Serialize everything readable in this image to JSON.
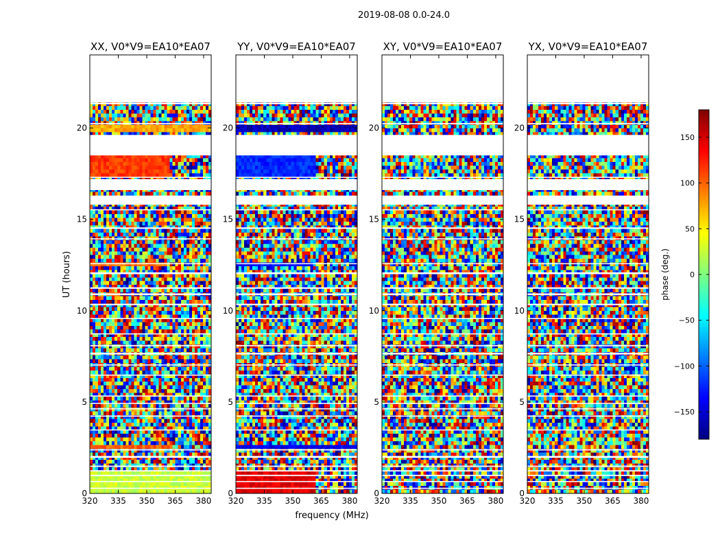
{
  "figure": {
    "suptitle": "2019-08-08 0.0-24.0",
    "xlabel": "frequency (MHz)",
    "ylabel": "UT (hours)"
  },
  "chart_data": {
    "type": "heatmap",
    "title": "2019-08-08 0.0-24.0",
    "xlabel": "frequency (MHz)",
    "ylabel": "UT (hours)",
    "xlim": [
      320,
      384
    ],
    "ylim": [
      0,
      24
    ],
    "xticks": [
      320,
      335,
      350,
      365,
      380
    ],
    "yticks": [
      0,
      5,
      10,
      15,
      20
    ],
    "data_extent_hours": [
      0,
      21.4
    ],
    "colorbar": {
      "label": "phase (deg.)",
      "range": [
        -180,
        180
      ],
      "ticks": [
        150,
        100,
        50,
        0,
        -50,
        -100,
        -150
      ],
      "tick_labels": [
        "150",
        "100",
        "50",
        "0",
        "−50",
        "−100",
        "−150"
      ],
      "colormap": "jet",
      "colors": [
        "#00007f",
        "#0000ff",
        "#007fff",
        "#00ffff",
        "#7fff7f",
        "#ffff00",
        "#ff7f00",
        "#ff0000",
        "#7f0000"
      ]
    },
    "gap_bands_hours": [
      [
        21.3,
        21.38
      ],
      [
        20.2,
        20.27
      ],
      [
        19.55,
        19.62
      ],
      [
        18.5,
        19.55
      ],
      [
        17.27,
        17.33
      ],
      [
        16.6,
        17.2
      ],
      [
        15.8,
        16.3
      ],
      [
        15.5,
        15.55
      ],
      [
        14.48,
        14.56
      ],
      [
        13.9,
        13.96
      ],
      [
        12.55,
        12.6
      ],
      [
        12.0,
        12.1
      ],
      [
        11.2,
        11.28
      ],
      [
        10.85,
        10.95
      ],
      [
        10.3,
        10.38
      ],
      [
        9.55,
        9.6
      ],
      [
        8.7,
        8.76
      ],
      [
        8.05,
        8.12
      ],
      [
        7.6,
        7.7
      ],
      [
        7.0,
        7.06
      ],
      [
        6.45,
        6.5
      ],
      [
        5.3,
        5.36
      ],
      [
        4.9,
        4.96
      ],
      [
        4.6,
        4.66
      ],
      [
        4.2,
        4.26
      ],
      [
        3.45,
        3.5
      ],
      [
        2.35,
        2.42
      ],
      [
        1.95,
        2.05
      ],
      [
        1.45,
        1.52
      ],
      [
        1.2,
        1.27
      ],
      [
        0.95,
        1.02
      ],
      [
        0.62,
        0.68
      ],
      [
        0.25,
        0.31
      ]
    ],
    "panels": [
      {
        "name": "XX",
        "title": "XX, V0*V9=EA10*EA07",
        "coherent_bands": [
          {
            "t": [
              0.05,
              1.2
            ],
            "phase": 25,
            "to_mhz": 384
          },
          {
            "t": [
              2.4,
              2.6
            ],
            "phase": 100,
            "to_mhz": 363
          },
          {
            "t": [
              12.35,
              12.55
            ],
            "phase": 95,
            "to_mhz": 360
          },
          {
            "t": [
              17.4,
              18.45
            ],
            "phase": 115,
            "to_mhz": 362
          },
          {
            "t": [
              19.7,
              20.15
            ],
            "phase": 75,
            "to_mhz": 384
          }
        ]
      },
      {
        "name": "YY",
        "title": "YY, V0*V9=EA10*EA07",
        "coherent_bands": [
          {
            "t": [
              0.05,
              1.2
            ],
            "phase": 145,
            "to_mhz": 362
          },
          {
            "t": [
              2.4,
              2.6
            ],
            "phase": -140,
            "to_mhz": 384
          },
          {
            "t": [
              12.35,
              12.55
            ],
            "phase": -130,
            "to_mhz": 360
          },
          {
            "t": [
              17.4,
              18.45
            ],
            "phase": -120,
            "to_mhz": 362
          },
          {
            "t": [
              19.7,
              20.15
            ],
            "phase": -160,
            "to_mhz": 384
          }
        ]
      },
      {
        "name": "XY",
        "title": "XY, V0*V9=EA10*EA07",
        "coherent_bands": []
      },
      {
        "name": "YX",
        "title": "YX, V0*V9=EA10*EA07",
        "coherent_bands": []
      }
    ]
  }
}
